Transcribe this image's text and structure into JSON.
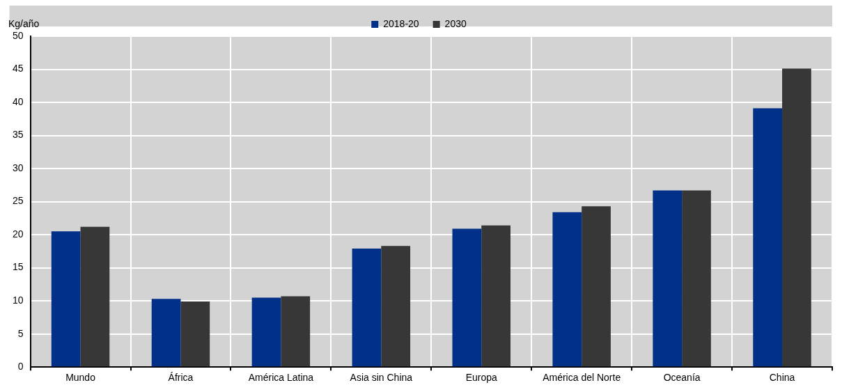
{
  "chart_data": {
    "type": "bar",
    "ylabel": "Kg/año",
    "categories": [
      "Mundo",
      "África",
      "América Latina",
      "Asia sin China",
      "Europa",
      "América del Norte",
      "Oceanía",
      "China"
    ],
    "series": [
      {
        "name": "2018-20",
        "color": "#003087",
        "values": [
          20.5,
          10.3,
          10.5,
          17.9,
          20.9,
          23.4,
          26.7,
          39.1
        ]
      },
      {
        "name": "2030",
        "color": "#373737",
        "values": [
          21.2,
          9.9,
          10.7,
          18.3,
          21.4,
          24.3,
          26.7,
          45.1
        ]
      }
    ],
    "ylim": [
      0,
      50
    ],
    "yticks": [
      0,
      5,
      10,
      15,
      20,
      25,
      30,
      35,
      40,
      45,
      50
    ],
    "grid": true,
    "legend": "top"
  }
}
